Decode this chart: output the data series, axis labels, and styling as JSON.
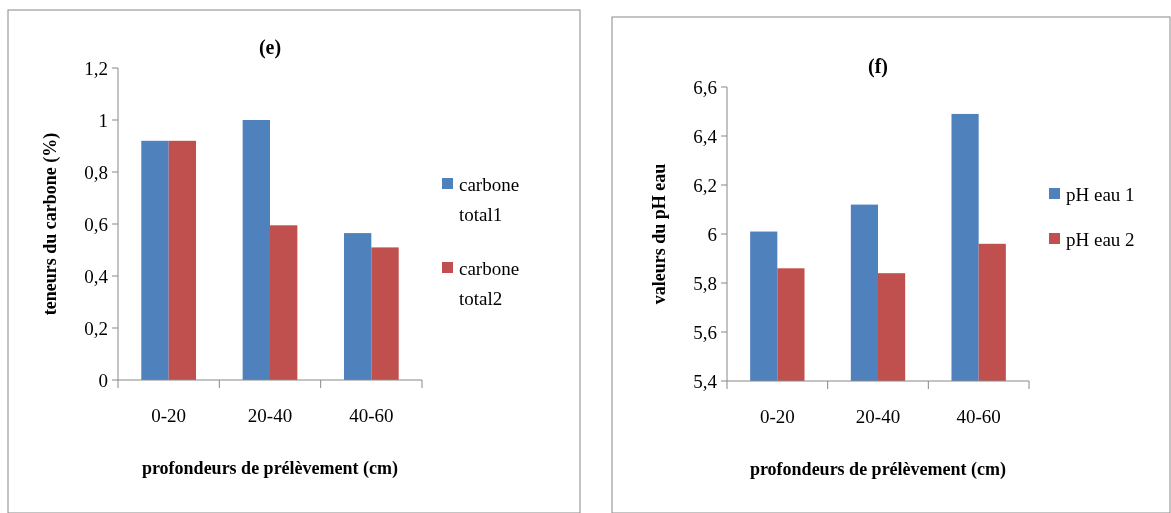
{
  "chart_data": [
    {
      "type": "bar",
      "title": "(e)",
      "xlabel": "profondeurs de prélèvement (cm)",
      "ylabel": "teneurs du carbone (%)",
      "categories": [
        "0-20",
        "20-40",
        "40-60"
      ],
      "series": [
        {
          "name": "carbone total1",
          "color": "#4f81bd",
          "values": [
            0.92,
            1.0,
            0.565
          ]
        },
        {
          "name": "carbone total2",
          "color": "#c0504d",
          "values": [
            0.92,
            0.595,
            0.51
          ]
        }
      ],
      "ylim": [
        0,
        1.2
      ],
      "yticks": [
        0,
        {
          "value": 0.2,
          "label": "0,2"
        },
        {
          "value": 0.4,
          "label": "0,4"
        },
        {
          "value": 0.6,
          "label": "0,6"
        },
        {
          "value": 0.8,
          "label": "0,8"
        },
        1,
        {
          "value": 1.2,
          "label": "1,2"
        }
      ],
      "grid": false,
      "legend": "right"
    },
    {
      "type": "bar",
      "title": "(f)",
      "xlabel": "profondeurs de prélèvement (cm)",
      "ylabel": "valeurs du pH eau",
      "categories": [
        "0-20",
        "20-40",
        "40-60"
      ],
      "series": [
        {
          "name": "pH eau 1",
          "color": "#4f81bd",
          "values": [
            6.01,
            6.12,
            6.49
          ]
        },
        {
          "name": "pH eau 2",
          "color": "#c0504d",
          "values": [
            5.86,
            5.84,
            5.96
          ]
        }
      ],
      "ylim": [
        5.4,
        6.6
      ],
      "yticks": [
        {
          "value": 5.4,
          "label": "5,4"
        },
        {
          "value": 5.6,
          "label": "5,6"
        },
        {
          "value": 5.8,
          "label": "5,8"
        },
        6,
        {
          "value": 6.2,
          "label": "6,2"
        },
        {
          "value": 6.4,
          "label": "6,4"
        },
        {
          "value": 6.6,
          "label": "6,6"
        }
      ],
      "grid": false,
      "legend": "right"
    }
  ]
}
